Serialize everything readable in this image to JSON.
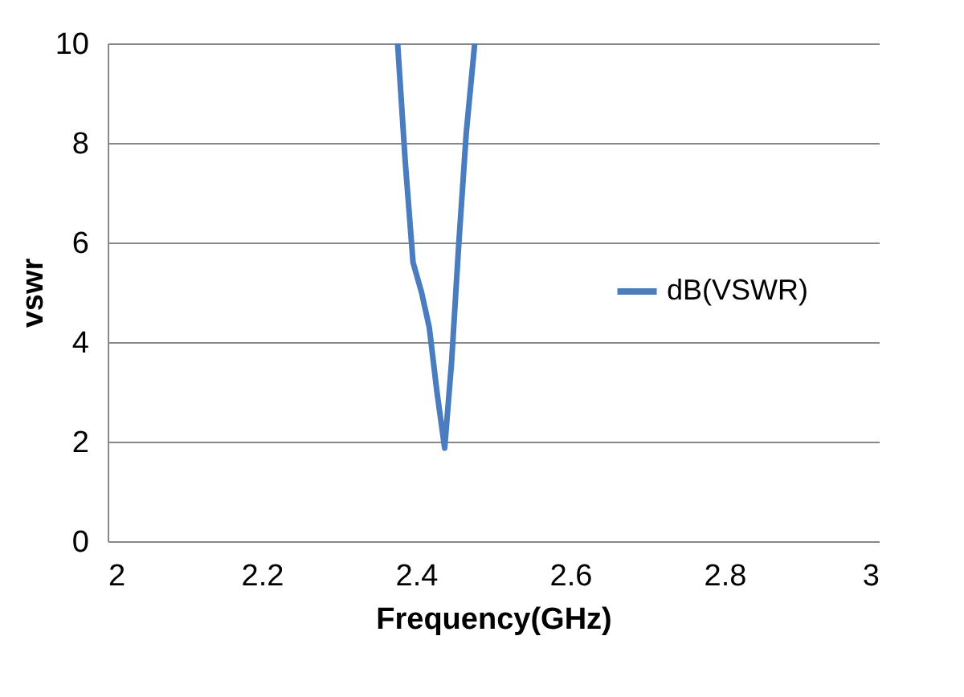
{
  "chart_data": {
    "type": "line",
    "xlabel": "Frequency(GHz)",
    "ylabel": "vswr",
    "xlim": [
      2,
      3
    ],
    "ylim": [
      0,
      10
    ],
    "xticks": [
      2,
      2.2,
      2.4,
      2.6,
      2.8,
      3
    ],
    "yticks": [
      0,
      2,
      4,
      6,
      8,
      10
    ],
    "grid": "y",
    "legend": "right",
    "marker": "none",
    "line_style": "solid",
    "series": [
      {
        "name": "dB(VSWR)",
        "color": "#4a7cc0",
        "x": [
          2.376,
          2.386,
          2.396,
          2.407,
          2.417,
          2.427,
          2.437,
          2.446,
          2.455,
          2.465,
          2.476
        ],
        "values": [
          10,
          7.6,
          5.6,
          5.0,
          4.3,
          3.0,
          1.87,
          3.6,
          5.9,
          8.2,
          10
        ]
      }
    ]
  }
}
